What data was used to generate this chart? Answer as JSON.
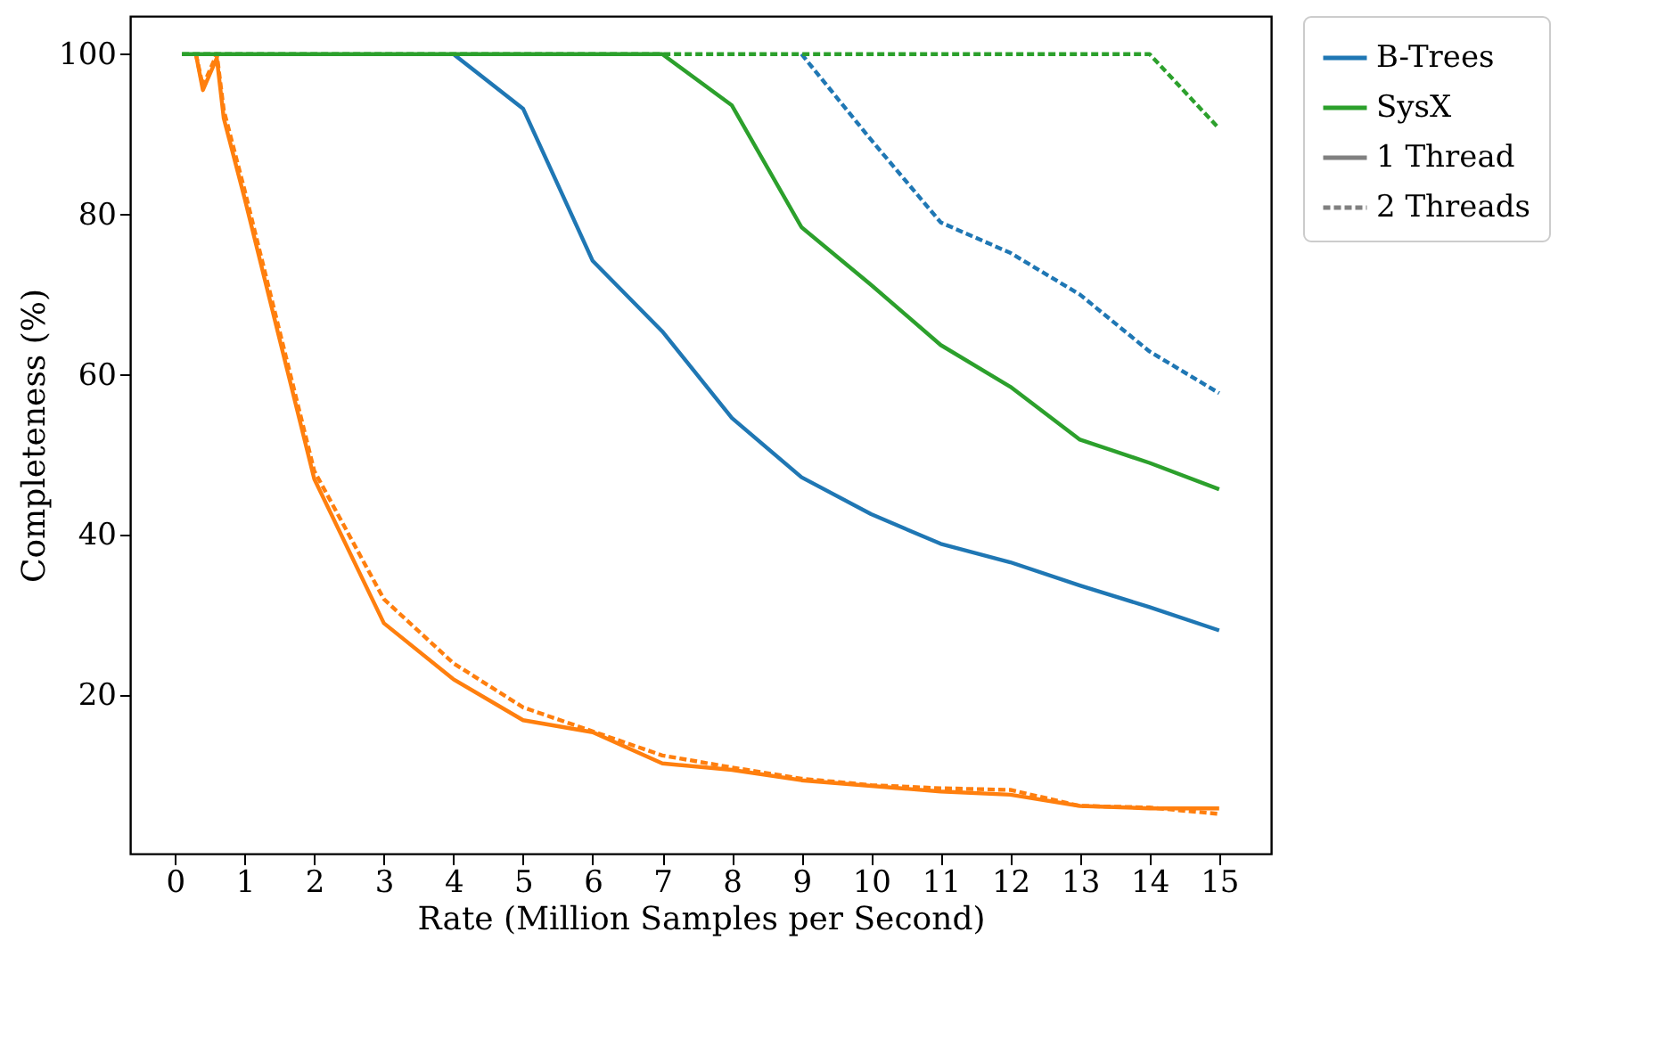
{
  "chart_data": {
    "type": "line",
    "xlabel": "Rate (Million Samples per Second)",
    "ylabel": "Completeness (%)",
    "xlim": [
      -0.645,
      15.745
    ],
    "ylim": [
      0.25,
      104.75
    ],
    "xticks": [
      0,
      1,
      2,
      3,
      4,
      5,
      6,
      7,
      8,
      9,
      10,
      11,
      12,
      13,
      14,
      15
    ],
    "yticks": [
      20,
      40,
      60,
      80,
      100
    ],
    "grid": false,
    "legend": "right",
    "marker": "none",
    "series": [
      {
        "color": "#ff7f0e",
        "line_style": "solid",
        "x": [
          0.3,
          0.4,
          0.6,
          0.7,
          1,
          2,
          3,
          4,
          5,
          6,
          7,
          8,
          9,
          10,
          11,
          12,
          13,
          14,
          15
        ],
        "values": [
          100,
          95.5,
          99.5,
          92,
          82,
          47,
          29,
          22,
          16.9,
          15.4,
          11.5,
          10.7,
          9.4,
          8.7,
          8.0,
          7.6,
          6.2,
          5.9,
          5.9
        ]
      },
      {
        "color": "#ff7f0e",
        "line_style": "dashed",
        "x": [
          0.3,
          0.4,
          0.6,
          0.7,
          1,
          2,
          3,
          4,
          5,
          6,
          7,
          8,
          9,
          10,
          11,
          12,
          13,
          14,
          15
        ],
        "values": [
          100,
          96,
          100,
          93,
          83,
          48,
          32,
          24,
          18.5,
          15.5,
          12.5,
          11,
          9.6,
          8.8,
          8.4,
          8.2,
          6.2,
          6.0,
          5.2
        ]
      },
      {
        "name": "B-Trees",
        "color": "#1f77b4",
        "line_style": "solid",
        "x": [
          4,
          5,
          6,
          7,
          8,
          9,
          10,
          11,
          12,
          13,
          14,
          15
        ],
        "values": [
          100,
          93.2,
          74.2,
          65.4,
          54.6,
          47.2,
          42.6,
          38.9,
          36.6,
          33.7,
          31.0,
          28.1
        ]
      },
      {
        "color": "#1f77b4",
        "line_style": "dashed",
        "x": [
          9,
          10,
          11,
          12,
          13,
          14,
          15
        ],
        "values": [
          100,
          89.3,
          79.0,
          75.2,
          70.0,
          62.9,
          57.7
        ]
      },
      {
        "name": "SysX",
        "color": "#2ca02c",
        "line_style": "solid",
        "x": [
          0.1,
          1,
          2,
          3,
          4,
          5,
          6,
          7,
          8,
          9,
          10,
          11,
          12,
          13,
          14,
          15
        ],
        "values": [
          100,
          100,
          100,
          100,
          100,
          100,
          100,
          100,
          93.6,
          78.4,
          71.2,
          63.7,
          58.5,
          51.9,
          49.0,
          45.7
        ]
      },
      {
        "color": "#2ca02c",
        "line_style": "dashed",
        "x": [
          0.1,
          1,
          2,
          3,
          4,
          5,
          6,
          7,
          8,
          9,
          10,
          11,
          12,
          13,
          14,
          15
        ],
        "values": [
          100,
          100,
          100,
          100,
          100,
          100,
          100,
          100,
          100,
          100,
          100,
          100,
          100,
          100,
          100,
          90.7
        ]
      },
      {
        "name": "1 Thread",
        "color": "#808080",
        "line_style": "solid"
      },
      {
        "name": "2 Threads",
        "color": "#808080",
        "line_style": "dashed"
      }
    ]
  }
}
